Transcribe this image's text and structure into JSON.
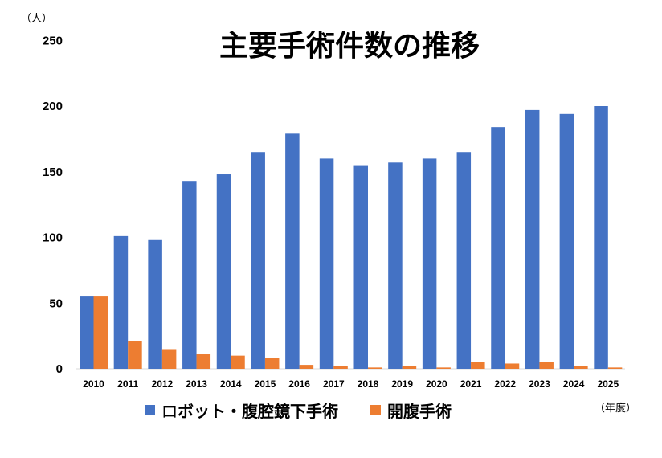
{
  "chart_data": {
    "type": "bar",
    "title": "主要手術件数の推移",
    "ylabel": "（人）",
    "xlabel": "（年度）",
    "categories": [
      "2010",
      "2011",
      "2012",
      "2013",
      "2014",
      "2015",
      "2016",
      "2017",
      "2018",
      "2019",
      "2020",
      "2021",
      "2022",
      "2023",
      "2024",
      "2025"
    ],
    "series": [
      {
        "name": "ロボット・腹腔鏡下手術",
        "color": "#4472C4",
        "values": [
          55,
          101,
          98,
          143,
          148,
          165,
          179,
          160,
          155,
          157,
          160,
          165,
          184,
          197,
          194,
          200
        ]
      },
      {
        "name": "開腹手術",
        "color": "#ED7D31",
        "values": [
          55,
          21,
          15,
          11,
          10,
          8,
          3,
          2,
          1,
          2,
          1,
          5,
          4,
          5,
          2,
          1
        ]
      }
    ],
    "ylim": [
      0,
      250
    ],
    "yticks": [
      0,
      50,
      100,
      150,
      200,
      250
    ],
    "grid": false,
    "legend": "bottom"
  }
}
